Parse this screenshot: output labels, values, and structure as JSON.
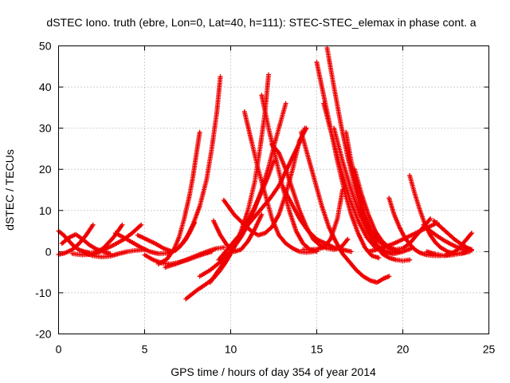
{
  "chart_data": {
    "type": "scatter",
    "title": "dSTEC Iono. truth (ebre, Lon=0, Lat=40, h=111): STEC-STEC_elemax in phase cont. a",
    "xlabel": "GPS time / hours of day 354 of year 2014",
    "ylabel": "dSTEC  / TECUs",
    "xlim": [
      0,
      25
    ],
    "ylim": [
      -20,
      50
    ],
    "xticks": [
      0,
      5,
      10,
      15,
      20,
      25
    ],
    "yticks": [
      -20,
      -10,
      0,
      10,
      20,
      30,
      40,
      50
    ],
    "xtick_labels": [
      "0",
      "5",
      "10",
      "15",
      "20",
      "25"
    ],
    "ytick_labels": [
      "-20",
      "-10",
      "0",
      "10",
      "20",
      "30",
      "40",
      "50"
    ],
    "grid": true,
    "marker": "+",
    "color": "#ee0000",
    "series": [
      {
        "x": [
          0.0,
          0.3,
          0.6,
          0.9,
          1.2,
          1.5,
          1.8,
          2.1,
          2.4
        ],
        "y": [
          5.0,
          4.0,
          2.6,
          1.3,
          0.4,
          0.0,
          -0.3,
          -0.2,
          0.0
        ]
      },
      {
        "x": [
          0.0,
          0.4,
          0.8,
          1.2,
          1.6,
          2.0
        ],
        "y": [
          -0.7,
          -0.3,
          0.5,
          2.0,
          4.0,
          6.5
        ]
      },
      {
        "x": [
          0.2,
          0.6,
          1.0,
          1.4,
          1.8,
          2.2,
          2.6,
          3.0
        ],
        "y": [
          2.0,
          3.4,
          4.2,
          3.0,
          1.6,
          0.6,
          0.0,
          -0.5
        ]
      },
      {
        "x": [
          0.8,
          1.4,
          2.0,
          2.6,
          3.2,
          3.7
        ],
        "y": [
          -0.5,
          -0.8,
          -0.6,
          0.8,
          3.5,
          6.5
        ]
      },
      {
        "x": [
          1.5,
          2.0,
          2.5,
          3.0,
          3.5,
          4.0,
          4.5,
          5.0
        ],
        "y": [
          -0.3,
          -1.0,
          -1.3,
          -1.1,
          -0.5,
          0.0,
          0.3,
          0.5
        ]
      },
      {
        "x": [
          2.0,
          2.6,
          3.2,
          3.8,
          4.3,
          4.8
        ],
        "y": [
          -0.5,
          0.4,
          1.6,
          3.0,
          4.6,
          6.5
        ]
      },
      {
        "x": [
          3.3,
          3.8,
          4.3,
          4.8,
          5.3,
          5.8,
          6.3,
          6.8,
          7.2,
          7.6,
          7.9
        ],
        "y": [
          4.5,
          3.4,
          2.2,
          1.0,
          0.0,
          -0.5,
          -0.4,
          0.3,
          2.0,
          4.5,
          7.0
        ]
      },
      {
        "x": [
          4.6,
          5.1,
          5.6,
          6.1,
          6.6,
          7.0,
          7.4,
          7.8,
          8.2,
          8.6,
          8.9,
          9.2,
          9.4
        ],
        "y": [
          4.0,
          3.0,
          2.0,
          0.8,
          0.0,
          1.0,
          3.0,
          6.5,
          11.0,
          17.5,
          25.0,
          34.0,
          42.5
        ]
      },
      {
        "x": [
          5.8,
          6.3,
          6.7,
          7.0,
          7.3,
          7.6,
          7.8,
          8.0,
          8.2
        ],
        "y": [
          -3.0,
          -1.8,
          0.5,
          3.5,
          8.0,
          13.5,
          18.0,
          23.5,
          29.0
        ]
      },
      {
        "x": [
          5.0,
          5.5,
          6.0,
          6.5,
          7.0,
          7.5,
          8.0,
          8.5,
          8.9
        ],
        "y": [
          -0.8,
          -2.0,
          -2.8,
          -3.0,
          -2.6,
          -2.0,
          -1.2,
          -0.5,
          0.0
        ]
      },
      {
        "x": [
          6.2,
          6.8,
          7.4,
          8.0,
          8.6,
          9.2,
          9.6
        ],
        "y": [
          -3.8,
          -3.0,
          -2.0,
          -1.0,
          0.0,
          0.8,
          1.0
        ]
      },
      {
        "x": [
          7.4,
          8.0,
          8.6,
          9.0,
          9.4,
          9.8,
          10.2,
          10.6,
          11.0,
          11.4,
          11.7,
          12.0,
          12.2
        ],
        "y": [
          -11.5,
          -9.5,
          -7.8,
          -6.5,
          -4.5,
          -2.0,
          1.0,
          5.0,
          10.0,
          17.0,
          25.0,
          34.0,
          43.0
        ]
      },
      {
        "x": [
          8.2,
          8.8,
          9.4,
          10.0,
          10.6,
          11.0,
          11.4,
          11.8,
          12.2,
          12.6,
          12.9,
          13.2
        ],
        "y": [
          -6.0,
          -4.5,
          -2.5,
          0.0,
          3.5,
          6.5,
          10.5,
          15.0,
          20.5,
          27.0,
          31.5,
          36.0
        ]
      },
      {
        "x": [
          8.8,
          9.3,
          9.8,
          10.3,
          10.8,
          11.3,
          11.8,
          12.2,
          12.5
        ],
        "y": [
          -7.5,
          -4.5,
          -1.5,
          2.0,
          6.0,
          10.0,
          14.5,
          18.5,
          22.0
        ]
      },
      {
        "x": [
          9.3,
          9.8,
          10.3,
          10.8,
          11.3,
          11.8,
          12.3,
          12.8,
          13.2,
          13.6,
          14.0,
          14.3
        ],
        "y": [
          -2.0,
          0.5,
          3.0,
          5.5,
          8.0,
          10.5,
          13.0,
          16.0,
          19.5,
          23.0,
          26.5,
          30.0
        ]
      },
      {
        "x": [
          9.6,
          10.2,
          10.8,
          11.2,
          11.6,
          12.0,
          12.4,
          12.8,
          13.2,
          13.6,
          14.0,
          14.4
        ],
        "y": [
          12.5,
          9.0,
          6.5,
          5.0,
          4.0,
          4.5,
          6.0,
          9.0,
          14.0,
          20.0,
          27.0,
          30.0
        ]
      },
      {
        "x": [
          9.0,
          9.4,
          9.8,
          10.2,
          10.6,
          11.0,
          11.4,
          11.8
        ],
        "y": [
          7.5,
          4.0,
          1.5,
          0.0,
          0.5,
          2.5,
          5.5,
          9.0
        ]
      },
      {
        "x": [
          10.8,
          11.2,
          11.6,
          12.0,
          12.4,
          12.8,
          13.2,
          13.6,
          14.0,
          14.4,
          14.8
        ],
        "y": [
          34.0,
          27.0,
          20.0,
          14.0,
          8.0,
          4.0,
          2.0,
          0.8,
          0.0,
          -0.2,
          0.0
        ]
      },
      {
        "x": [
          11.8,
          12.2,
          12.6,
          13.0,
          13.4,
          13.8,
          14.2,
          14.6,
          15.0
        ],
        "y": [
          38.0,
          30.0,
          23.0,
          16.0,
          10.0,
          5.0,
          2.0,
          0.5,
          0.0
        ]
      },
      {
        "x": [
          12.4,
          12.8,
          13.2,
          13.6,
          14.0,
          14.4,
          14.8,
          15.2,
          15.6,
          16.0,
          16.4,
          16.8
        ],
        "y": [
          26.0,
          24.0,
          20.0,
          15.0,
          10.0,
          6.0,
          3.0,
          1.5,
          0.8,
          0.5,
          1.0,
          3.0
        ]
      },
      {
        "x": [
          13.0,
          13.5,
          14.0,
          14.5,
          15.0,
          15.5,
          16.0,
          16.5,
          17.0
        ],
        "y": [
          16.0,
          12.0,
          8.0,
          5.0,
          3.0,
          2.0,
          1.0,
          0.5,
          0.0
        ]
      },
      {
        "x": [
          14.1,
          14.5,
          14.9,
          15.3,
          15.7,
          16.1,
          16.5,
          16.9,
          17.3,
          17.7,
          18.1,
          18.5,
          18.9,
          19.2
        ],
        "y": [
          29.0,
          23.0,
          17.0,
          11.0,
          6.0,
          2.5,
          -0.5,
          -2.5,
          -4.5,
          -6.0,
          -7.0,
          -7.5,
          -6.5,
          -6.0
        ]
      },
      {
        "x": [
          15.0,
          15.4,
          15.8,
          16.2,
          16.6,
          17.0,
          17.4,
          17.8,
          18.2,
          18.6
        ],
        "y": [
          46.0,
          38.0,
          30.0,
          22.0,
          15.0,
          9.0,
          4.5,
          1.0,
          -1.0,
          -1.5
        ]
      },
      {
        "x": [
          15.6,
          16.0,
          16.4,
          16.8,
          17.2,
          17.6,
          18.0,
          18.4,
          18.8,
          19.2,
          19.6,
          20.0,
          20.4
        ],
        "y": [
          49.5,
          40.0,
          31.0,
          23.0,
          16.0,
          10.0,
          5.5,
          2.0,
          -0.5,
          -1.5,
          -2.0,
          -2.2,
          -2.0
        ]
      },
      {
        "x": [
          15.4,
          15.9,
          16.4,
          16.9,
          17.4,
          17.9,
          18.4,
          18.9,
          19.4
        ],
        "y": [
          36.0,
          28.0,
          20.0,
          13.0,
          7.5,
          3.5,
          1.0,
          0.0,
          -0.5
        ]
      },
      {
        "x": [
          16.0,
          16.5,
          17.0,
          17.5,
          18.0,
          18.5,
          19.0,
          19.5,
          20.0,
          20.5
        ],
        "y": [
          30.0,
          22.0,
          15.0,
          9.0,
          4.5,
          1.5,
          0.0,
          -0.5,
          0.0,
          0.8
        ]
      },
      {
        "x": [
          14.2,
          14.6,
          15.0,
          15.4,
          15.8,
          16.2,
          16.5
        ],
        "y": [
          0.5,
          0.5,
          0.6,
          1.0,
          3.0,
          8.0,
          15.0
        ]
      },
      {
        "x": [
          16.7,
          17.0,
          17.4,
          17.8,
          18.2,
          18.6,
          19.0,
          19.4,
          19.8
        ],
        "y": [
          29.0,
          22.0,
          15.0,
          9.0,
          5.0,
          2.5,
          1.2,
          0.5,
          0.0
        ]
      },
      {
        "x": [
          17.2,
          17.6,
          18.0,
          18.4,
          18.8,
          19.2,
          19.6,
          20.0,
          20.4,
          20.8,
          21.2,
          21.6
        ],
        "y": [
          20.0,
          14.0,
          9.0,
          5.0,
          2.5,
          1.0,
          0.5,
          0.8,
          2.0,
          4.0,
          6.0,
          8.0
        ]
      },
      {
        "x": [
          18.0,
          18.5,
          19.0,
          19.5,
          20.0,
          20.5,
          21.0,
          21.5,
          22.0
        ],
        "y": [
          0.0,
          0.5,
          1.2,
          2.0,
          3.0,
          4.0,
          5.0,
          6.0,
          7.0
        ]
      },
      {
        "x": [
          19.2,
          19.5,
          19.8,
          20.1,
          20.4,
          20.7,
          21.0,
          21.4,
          21.8,
          22.2
        ],
        "y": [
          13.0,
          9.0,
          6.0,
          3.5,
          1.8,
          0.5,
          -0.3,
          -0.8,
          -1.0,
          -1.0
        ]
      },
      {
        "x": [
          20.4,
          20.7,
          21.0,
          21.3,
          21.6,
          21.9,
          22.2,
          22.6,
          23.0,
          23.4,
          23.8
        ],
        "y": [
          18.5,
          14.0,
          10.0,
          6.5,
          4.0,
          2.2,
          1.0,
          0.0,
          -0.5,
          -0.5,
          0.0
        ]
      },
      {
        "x": [
          21.2,
          21.6,
          22.0,
          22.4,
          22.8,
          23.2,
          23.6,
          24.0
        ],
        "y": [
          6.5,
          5.0,
          3.8,
          2.7,
          1.8,
          1.0,
          0.5,
          0.3
        ]
      },
      {
        "x": [
          21.8,
          22.2,
          22.6,
          23.0,
          23.4,
          23.8,
          24.0
        ],
        "y": [
          7.5,
          6.0,
          4.5,
          3.0,
          1.8,
          0.8,
          0.5
        ]
      },
      {
        "x": [
          22.4,
          22.8,
          23.2,
          23.6,
          24.0
        ],
        "y": [
          -1.0,
          -0.5,
          0.5,
          2.5,
          4.5
        ]
      },
      {
        "x": [
          21.4,
          21.9,
          22.4,
          22.9,
          23.4,
          23.9
        ],
        "y": [
          0.0,
          -0.6,
          -1.0,
          -0.8,
          -0.4,
          0.0
        ]
      }
    ]
  }
}
